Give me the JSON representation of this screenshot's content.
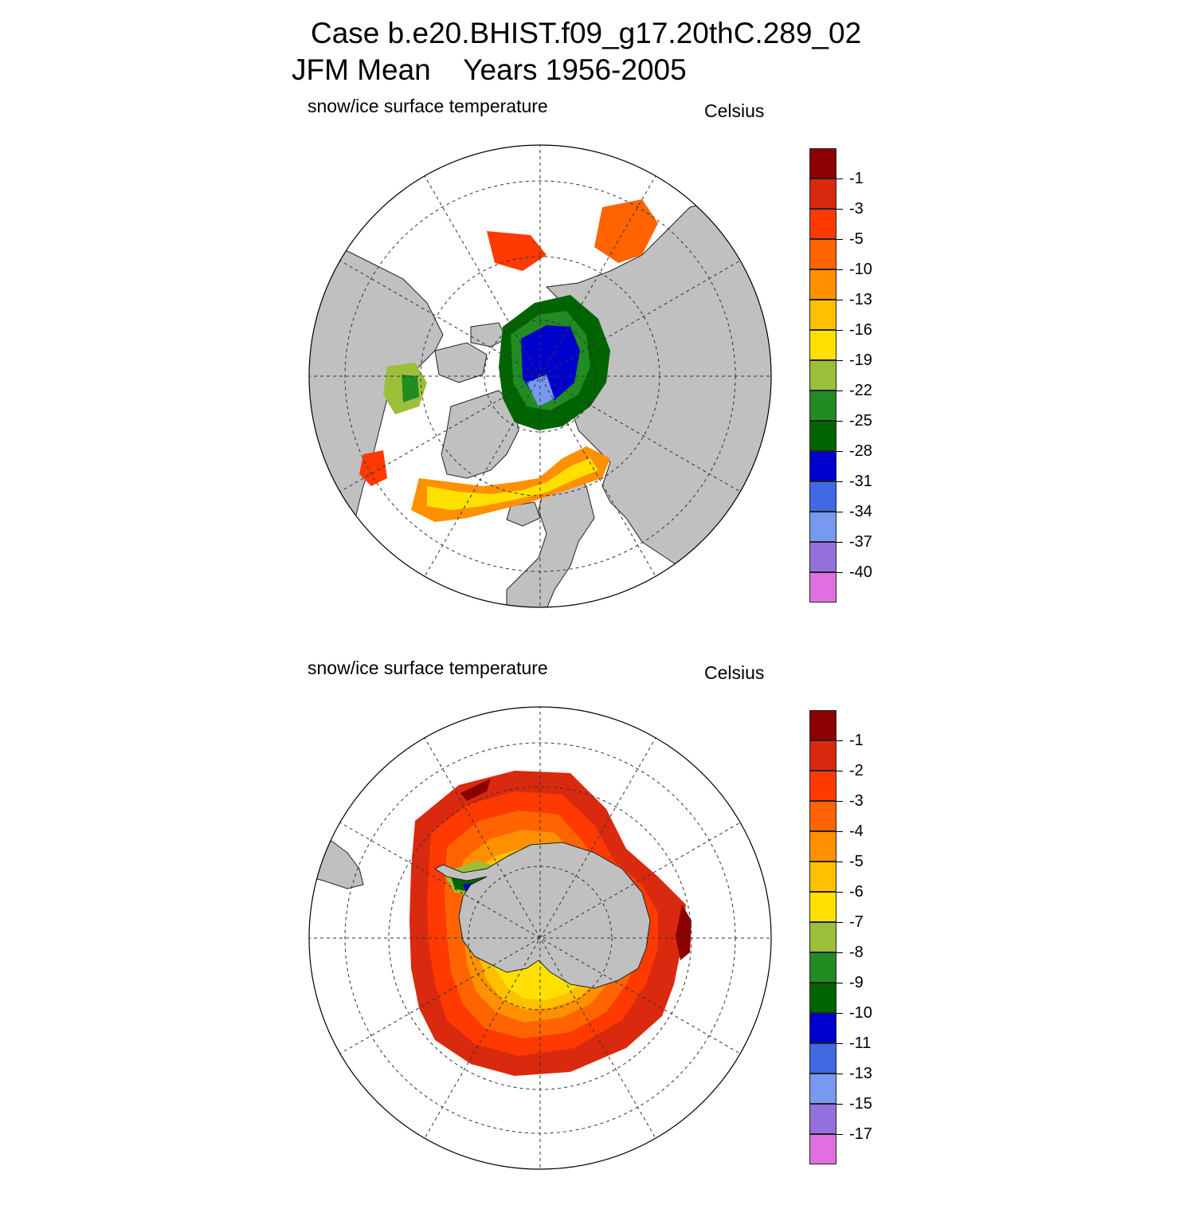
{
  "title": {
    "line1": "Case b.e20.BHIST.f09_g17.20thC.289_02",
    "line2": "JFM Mean    Years 1956-2005"
  },
  "panels": [
    {
      "id": "north",
      "variable": "snow/ice surface temperature",
      "units": "Celsius",
      "colorbar": {
        "colors": [
          "#8b0000",
          "#d9290f",
          "#ff3a00",
          "#ff6400",
          "#ff9000",
          "#ffc000",
          "#ffe000",
          "#9cbf3a",
          "#228b22",
          "#006400",
          "#0000cd",
          "#4169e1",
          "#7799f0",
          "#9370db",
          "#e070e0"
        ],
        "levels": [
          "-1",
          "-3",
          "-5",
          "-10",
          "-13",
          "-16",
          "-19",
          "-22",
          "-25",
          "-28",
          "-31",
          "-34",
          "-37",
          "-40"
        ]
      }
    },
    {
      "id": "south",
      "variable": "snow/ice surface temperature",
      "units": "Celsius",
      "colorbar": {
        "colors": [
          "#8b0000",
          "#d9290f",
          "#ff3a00",
          "#ff6400",
          "#ff9000",
          "#ffc000",
          "#ffe000",
          "#9cbf3a",
          "#228b22",
          "#006400",
          "#0000cd",
          "#4169e1",
          "#7799f0",
          "#9370db",
          "#e070e0"
        ],
        "levels": [
          "-1",
          "-2",
          "-3",
          "-4",
          "-5",
          "-6",
          "-7",
          "-8",
          "-9",
          "-10",
          "-11",
          "-13",
          "-15",
          "-17"
        ]
      }
    }
  ],
  "colors": {
    "land": "#c0c0c0",
    "ocean": "#ffffff"
  }
}
